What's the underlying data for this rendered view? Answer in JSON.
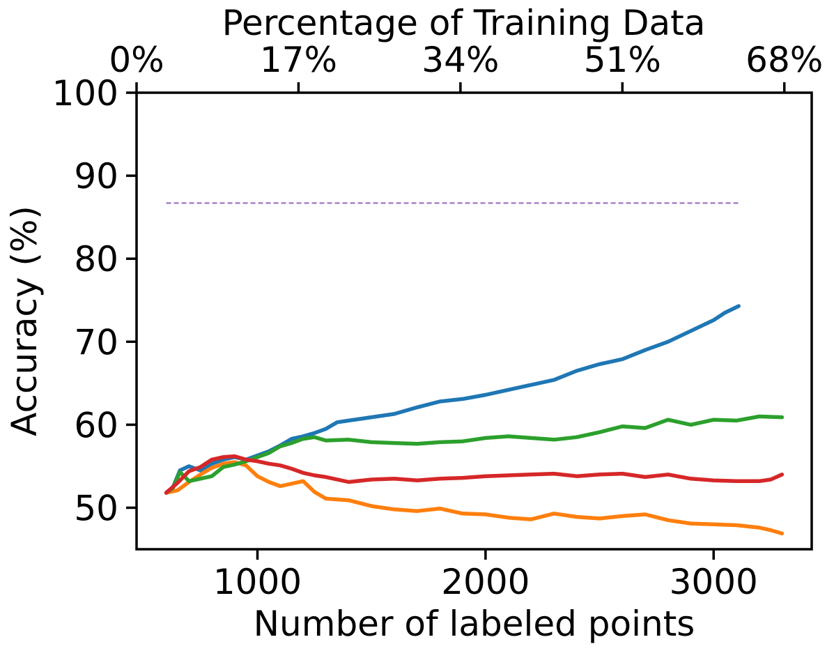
{
  "chart_data": {
    "type": "line",
    "title": "",
    "xlabel": "Number of labeled points",
    "ylabel": "Accuracy (%)",
    "top_xlabel": "Percentage of Training Data",
    "xlim": [
      470,
      3430
    ],
    "ylim": [
      45,
      100
    ],
    "xticks": [
      1000,
      2000,
      3000
    ],
    "xtick_labels": [
      "1000",
      "2000",
      "3000"
    ],
    "yticks": [
      50,
      60,
      70,
      80,
      90,
      100
    ],
    "ytick_labels": [
      "50",
      "60",
      "70",
      "80",
      "90",
      "100"
    ],
    "top_xticks": [
      470,
      1180,
      1890,
      2600,
      3310
    ],
    "top_xtick_labels": [
      "0%",
      "17%",
      "34%",
      "51%",
      "68%"
    ],
    "grid": false,
    "legend": "none",
    "reference_line": {
      "y": 86.7,
      "x": [
        600,
        3110
      ],
      "color": "#9467bd",
      "style": "dashed"
    },
    "series": [
      {
        "color": "#1f77b4",
        "x": [
          600,
          630,
          660,
          700,
          750,
          800,
          850,
          900,
          950,
          1000,
          1050,
          1100,
          1150,
          1200,
          1250,
          1300,
          1350,
          1400,
          1500,
          1600,
          1700,
          1800,
          1900,
          2000,
          2100,
          2200,
          2300,
          2400,
          2500,
          2600,
          2700,
          2800,
          2900,
          3000,
          3050,
          3110
        ],
        "y": [
          51.8,
          52.5,
          54.5,
          55.0,
          54.5,
          55.3,
          55.8,
          56.1,
          55.8,
          56.3,
          56.8,
          57.5,
          58.3,
          58.6,
          59.0,
          59.5,
          60.3,
          60.5,
          60.9,
          61.3,
          62.1,
          62.8,
          63.1,
          63.6,
          64.2,
          64.8,
          65.4,
          66.5,
          67.3,
          67.9,
          69.0,
          70.0,
          71.3,
          72.6,
          73.5,
          74.3
        ]
      },
      {
        "color": "#ff7f0e",
        "x": [
          600,
          650,
          700,
          750,
          800,
          850,
          900,
          950,
          1000,
          1050,
          1100,
          1150,
          1200,
          1250,
          1300,
          1400,
          1500,
          1600,
          1700,
          1800,
          1900,
          2000,
          2100,
          2200,
          2300,
          2400,
          2500,
          2600,
          2700,
          2800,
          2900,
          3000,
          3100,
          3200,
          3250,
          3300
        ],
        "y": [
          51.8,
          52.1,
          53.1,
          54.0,
          54.8,
          55.3,
          55.5,
          55.1,
          53.8,
          53.1,
          52.6,
          52.9,
          53.2,
          51.9,
          51.1,
          50.9,
          50.2,
          49.8,
          49.6,
          49.9,
          49.3,
          49.2,
          48.8,
          48.6,
          49.3,
          48.9,
          48.7,
          49.0,
          49.2,
          48.5,
          48.1,
          48.0,
          47.9,
          47.6,
          47.3,
          46.9
        ]
      },
      {
        "color": "#2ca02c",
        "x": [
          600,
          630,
          660,
          700,
          750,
          800,
          850,
          900,
          950,
          1000,
          1050,
          1100,
          1150,
          1200,
          1250,
          1300,
          1400,
          1500,
          1600,
          1700,
          1800,
          1900,
          2000,
          2100,
          2200,
          2300,
          2400,
          2500,
          2600,
          2700,
          2800,
          2900,
          3000,
          3100,
          3200,
          3300
        ],
        "y": [
          51.8,
          52.4,
          54.3,
          53.2,
          53.5,
          53.8,
          54.9,
          55.2,
          55.6,
          56.1,
          56.6,
          57.4,
          57.8,
          58.3,
          58.5,
          58.1,
          58.2,
          57.9,
          57.8,
          57.7,
          57.9,
          58.0,
          58.4,
          58.6,
          58.4,
          58.2,
          58.5,
          59.1,
          59.8,
          59.6,
          60.6,
          60.0,
          60.6,
          60.5,
          61.0,
          60.9
        ]
      },
      {
        "color": "#d62728",
        "x": [
          600,
          650,
          700,
          750,
          800,
          850,
          900,
          950,
          1000,
          1050,
          1100,
          1150,
          1200,
          1250,
          1300,
          1400,
          1500,
          1600,
          1700,
          1800,
          1900,
          2000,
          2100,
          2200,
          2300,
          2400,
          2500,
          2600,
          2700,
          2800,
          2900,
          3000,
          3100,
          3200,
          3250,
          3300
        ],
        "y": [
          51.8,
          53.0,
          54.4,
          54.9,
          55.8,
          56.1,
          56.2,
          55.8,
          55.6,
          55.3,
          55.1,
          54.7,
          54.2,
          53.9,
          53.7,
          53.1,
          53.4,
          53.5,
          53.3,
          53.5,
          53.6,
          53.8,
          53.9,
          54.0,
          54.1,
          53.8,
          54.0,
          54.1,
          53.7,
          54.0,
          53.5,
          53.3,
          53.2,
          53.2,
          53.4,
          54.0
        ]
      }
    ]
  }
}
